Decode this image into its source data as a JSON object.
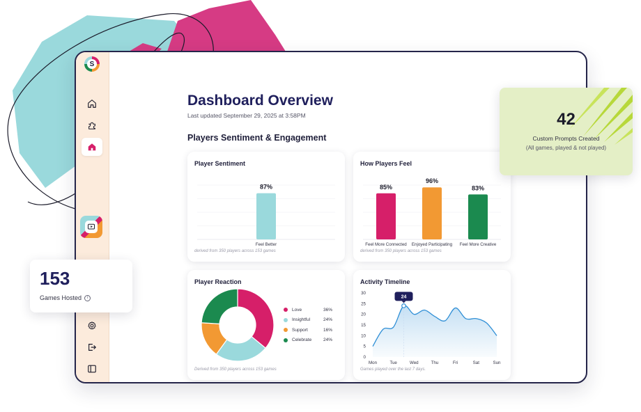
{
  "page": {
    "title": "Dashboard Overview",
    "updated": "Last updated September 29, 2025 at 3:58PM",
    "section_title": "Players Sentiment & Engagement"
  },
  "sidebar": {
    "logo_letter": "S",
    "items": [
      {
        "name": "home",
        "icon": "home-icon"
      },
      {
        "name": "games",
        "icon": "puzzle-icon"
      },
      {
        "name": "dashboard",
        "icon": "house-filled-icon",
        "active": true
      },
      {
        "name": "presentation",
        "icon": "screen-play-icon"
      },
      {
        "name": "settings",
        "icon": "gear-icon"
      },
      {
        "name": "logout",
        "icon": "logout-icon"
      },
      {
        "name": "collapse",
        "icon": "sidebar-panel-icon"
      }
    ]
  },
  "cards": {
    "sentiment": {
      "title": "Player Sentiment",
      "footnote": "derived from 350 players across 153 games",
      "chart_data": {
        "type": "bar",
        "categories": [
          "Feel Better"
        ],
        "values": [
          87
        ],
        "value_labels": [
          "87%"
        ],
        "ylim": [
          0,
          100
        ],
        "colors": [
          "#9ad9dc"
        ]
      }
    },
    "feel": {
      "title": "How Players Feel",
      "footnote": "derived from 350 players across 153 games",
      "chart_data": {
        "type": "bar",
        "categories": [
          "Feel More Connected",
          "Enjoyed Participating",
          "Feel More Creative"
        ],
        "values": [
          85,
          96,
          83
        ],
        "value_labels": [
          "85%",
          "96%",
          "83%"
        ],
        "ylim": [
          0,
          100
        ],
        "colors": [
          "#d61f69",
          "#f29933",
          "#1b8a4f"
        ]
      }
    },
    "reaction": {
      "title": "Player Reaction",
      "footnote": "Derived from 350 players across 153 games",
      "chart_data": {
        "type": "pie",
        "labels": [
          "Love",
          "Insightful",
          "Support",
          "Celebrate"
        ],
        "values": [
          36,
          24,
          16,
          24
        ],
        "value_labels": [
          "36%",
          "24%",
          "16%",
          "24%"
        ],
        "colors": [
          "#d61f69",
          "#9ad9dc",
          "#f29933",
          "#1b8a4f"
        ]
      }
    },
    "timeline": {
      "title": "Activity Timeline",
      "footnote": "Games played over the last 7 days.",
      "tooltip": "24",
      "chart_data": {
        "type": "area",
        "categories": [
          "Mon",
          "Tue",
          "Wed",
          "Thu",
          "Fri",
          "Sat",
          "Sun"
        ],
        "x": [
          0,
          0.5,
          1,
          1.5,
          2,
          2.5,
          3,
          3.5,
          4,
          4.5,
          5,
          5.5,
          6
        ],
        "values": [
          5,
          13,
          14,
          24,
          20,
          22,
          19,
          17,
          23,
          18,
          18,
          16,
          10
        ],
        "yticks": [
          0,
          5,
          10,
          15,
          20,
          25,
          30
        ],
        "ylim": [
          0,
          30
        ],
        "highlight_index": 3,
        "color": "#2f8fd6"
      }
    }
  },
  "floating": {
    "games_hosted": {
      "value": "153",
      "label": "Games Hosted",
      "info": "i"
    },
    "custom_prompts": {
      "value": "42",
      "label": "Custom Prompts Created",
      "sub": "(All games, played & not played)"
    }
  }
}
